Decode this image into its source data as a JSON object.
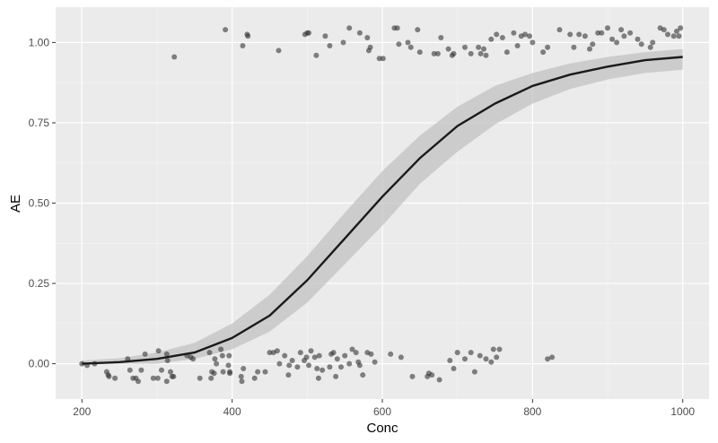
{
  "chart_data": {
    "type": "scatter",
    "title": "",
    "xlabel": "Conc",
    "ylabel": "AE",
    "xlim": [
      165,
      1035
    ],
    "ylim": [
      -0.11,
      1.11
    ],
    "x_ticks": [
      200,
      400,
      600,
      800,
      1000
    ],
    "x_tick_labels": [
      "200",
      "400",
      "600",
      "800",
      "1000"
    ],
    "y_ticks": [
      0,
      0.25,
      0.5,
      0.75,
      1.0
    ],
    "y_tick_labels": [
      "0.00",
      "0.25",
      "0.50",
      "0.75",
      "1.00"
    ],
    "grid": true,
    "legend": "none",
    "colors": {
      "panel_bg": "#ebebeb",
      "grid_major": "#ffffff",
      "grid_minor": "#f5f5f5",
      "points": "#333333",
      "points_alpha": 0.6,
      "curve": "#1a1a1a",
      "ribbon": "#bfbfbf",
      "ribbon_alpha": 0.7
    },
    "fit": {
      "method": "glm (binomial, logistic)",
      "x": [
        200,
        250,
        300,
        350,
        400,
        450,
        500,
        550,
        600,
        650,
        700,
        750,
        800,
        850,
        900,
        950,
        1000
      ],
      "y": [
        0.0,
        0.005,
        0.015,
        0.035,
        0.08,
        0.15,
        0.26,
        0.39,
        0.52,
        0.64,
        0.74,
        0.81,
        0.865,
        0.9,
        0.925,
        0.945,
        0.955
      ],
      "lower": [
        0.0,
        0.0,
        0.0,
        0.015,
        0.045,
        0.1,
        0.19,
        0.31,
        0.43,
        0.56,
        0.66,
        0.745,
        0.81,
        0.855,
        0.885,
        0.905,
        0.915
      ],
      "upper": [
        0.01,
        0.017,
        0.035,
        0.065,
        0.125,
        0.215,
        0.335,
        0.47,
        0.6,
        0.71,
        0.8,
        0.865,
        0.905,
        0.935,
        0.955,
        0.97,
        0.98
      ]
    },
    "points": {
      "note": "jittered binary outcome (AE = 0 or 1)",
      "ae1": [
        [
          323,
          0.955
        ],
        [
          391,
          1.04
        ],
        [
          414,
          0.99
        ],
        [
          420,
          1.025
        ],
        [
          421,
          1.02
        ],
        [
          462,
          0.975
        ],
        [
          497,
          1.025
        ],
        [
          500,
          1.03
        ],
        [
          502,
          1.03
        ],
        [
          512,
          0.96
        ],
        [
          524,
          1.02
        ],
        [
          530,
          0.99
        ],
        [
          548,
          1.0
        ],
        [
          556,
          1.045
        ],
        [
          570,
          1.03
        ],
        [
          580,
          1.015
        ],
        [
          582,
          0.975
        ],
        [
          584,
          0.985
        ],
        [
          596,
          0.95
        ],
        [
          601,
          0.95
        ],
        [
          616,
          1.045
        ],
        [
          620,
          1.045
        ],
        [
          622,
          0.995
        ],
        [
          634,
          1.0
        ],
        [
          638,
          0.985
        ],
        [
          647,
          1.04
        ],
        [
          650,
          0.97
        ],
        [
          669,
          0.965
        ],
        [
          674,
          0.965
        ],
        [
          678,
          1.015
        ],
        [
          688,
          0.98
        ],
        [
          693,
          0.96
        ],
        [
          695,
          0.965
        ],
        [
          710,
          0.985
        ],
        [
          718,
          0.965
        ],
        [
          728,
          0.985
        ],
        [
          731,
          0.965
        ],
        [
          735,
          0.98
        ],
        [
          738,
          0.96
        ],
        [
          745,
          1.01
        ],
        [
          752,
          1.025
        ],
        [
          760,
          1.015
        ],
        [
          766,
          0.97
        ],
        [
          775,
          1.03
        ],
        [
          780,
          0.99
        ],
        [
          785,
          1.02
        ],
        [
          790,
          1.025
        ],
        [
          796,
          1.02
        ],
        [
          800,
          1.0
        ],
        [
          814,
          0.97
        ],
        [
          820,
          0.985
        ],
        [
          836,
          1.04
        ],
        [
          850,
          1.025
        ],
        [
          855,
          0.985
        ],
        [
          862,
          1.025
        ],
        [
          870,
          1.02
        ],
        [
          876,
          0.98
        ],
        [
          880,
          0.995
        ],
        [
          887,
          1.03
        ],
        [
          892,
          1.03
        ],
        [
          900,
          1.045
        ],
        [
          906,
          1.01
        ],
        [
          912,
          1.0
        ],
        [
          918,
          1.04
        ],
        [
          922,
          1.02
        ],
        [
          930,
          1.03
        ],
        [
          940,
          1.01
        ],
        [
          945,
          0.995
        ],
        [
          957,
          0.985
        ],
        [
          960,
          1.0
        ],
        [
          970,
          1.045
        ],
        [
          975,
          1.04
        ],
        [
          980,
          1.025
        ],
        [
          988,
          1.02
        ],
        [
          992,
          1.035
        ],
        [
          995,
          1.02
        ],
        [
          997,
          1.045
        ]
      ],
      "ae0": [
        [
          200,
          0.0
        ],
        [
          207,
          -0.005
        ],
        [
          217,
          0.0
        ],
        [
          233,
          -0.025
        ],
        [
          235,
          -0.035
        ],
        [
          236,
          -0.04
        ],
        [
          244,
          -0.045
        ],
        [
          261,
          0.015
        ],
        [
          264,
          -0.02
        ],
        [
          268,
          -0.045
        ],
        [
          272,
          -0.045
        ],
        [
          275,
          -0.055
        ],
        [
          279,
          -0.02
        ],
        [
          284,
          0.03
        ],
        [
          295,
          -0.045
        ],
        [
          301,
          -0.045
        ],
        [
          302,
          0.04
        ],
        [
          306,
          -0.02
        ],
        [
          313,
          0.03
        ],
        [
          313,
          -0.055
        ],
        [
          314,
          0.01
        ],
        [
          318,
          -0.025
        ],
        [
          320,
          -0.04
        ],
        [
          322,
          -0.04
        ],
        [
          340,
          0.025
        ],
        [
          345,
          0.02
        ],
        [
          348,
          0.015
        ],
        [
          357,
          -0.045
        ],
        [
          370,
          0.035
        ],
        [
          372,
          -0.045
        ],
        [
          373,
          -0.025
        ],
        [
          376,
          -0.03
        ],
        [
          377,
          0.015
        ],
        [
          379,
          0.0
        ],
        [
          385,
          0.045
        ],
        [
          387,
          0.025
        ],
        [
          388,
          -0.025
        ],
        [
          395,
          -0.005
        ],
        [
          396,
          0.025
        ],
        [
          397,
          -0.025
        ],
        [
          397,
          -0.03
        ],
        [
          412,
          -0.04
        ],
        [
          413,
          -0.055
        ],
        [
          415,
          -0.015
        ],
        [
          430,
          -0.045
        ],
        [
          434,
          -0.025
        ],
        [
          444,
          -0.025
        ],
        [
          450,
          0.035
        ],
        [
          455,
          0.035
        ],
        [
          460,
          0.04
        ],
        [
          463,
          0.0
        ],
        [
          470,
          0.025
        ],
        [
          475,
          -0.035
        ],
        [
          476,
          -0.005
        ],
        [
          480,
          0.01
        ],
        [
          487,
          -0.01
        ],
        [
          491,
          0.035
        ],
        [
          496,
          0.01
        ],
        [
          499,
          0.02
        ],
        [
          502,
          -0.005
        ],
        [
          505,
          0.04
        ],
        [
          510,
          0.02
        ],
        [
          513,
          -0.015
        ],
        [
          515,
          -0.045
        ],
        [
          516,
          0.025
        ],
        [
          520,
          -0.02
        ],
        [
          530,
          -0.01
        ],
        [
          532,
          0.03
        ],
        [
          535,
          0.035
        ],
        [
          538,
          -0.04
        ],
        [
          540,
          0.015
        ],
        [
          545,
          -0.01
        ],
        [
          550,
          0.025
        ],
        [
          556,
          0.0
        ],
        [
          560,
          0.045
        ],
        [
          565,
          0.035
        ],
        [
          568,
          0.005
        ],
        [
          570,
          -0.005
        ],
        [
          574,
          -0.035
        ],
        [
          580,
          0.035
        ],
        [
          585,
          0.03
        ],
        [
          590,
          0.005
        ],
        [
          611,
          0.03
        ],
        [
          625,
          0.02
        ],
        [
          640,
          -0.04
        ],
        [
          660,
          -0.04
        ],
        [
          662,
          -0.03
        ],
        [
          666,
          -0.035
        ],
        [
          676,
          -0.05
        ],
        [
          690,
          0.01
        ],
        [
          695,
          -0.015
        ],
        [
          700,
          0.035
        ],
        [
          710,
          0.015
        ],
        [
          718,
          0.035
        ],
        [
          723,
          -0.025
        ],
        [
          730,
          0.025
        ],
        [
          738,
          0.015
        ],
        [
          745,
          0.005
        ],
        [
          748,
          0.045
        ],
        [
          752,
          0.02
        ],
        [
          756,
          0.045
        ],
        [
          820,
          0.015
        ],
        [
          826,
          0.02
        ]
      ]
    }
  }
}
